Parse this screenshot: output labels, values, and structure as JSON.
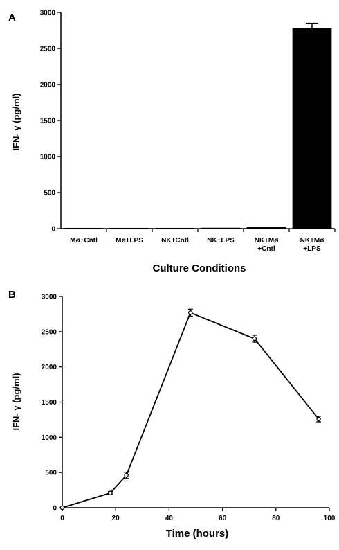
{
  "chart_data": [
    {
      "panel": "A",
      "type": "bar",
      "categories": [
        [
          "Mø+Cntl"
        ],
        [
          "Mø+LPS"
        ],
        [
          "NK+Cntl"
        ],
        [
          "NK+LPS"
        ],
        [
          "NK+Mø",
          "+Cntl"
        ],
        [
          "NK+Mø",
          "+LPS"
        ]
      ],
      "values": [
        10,
        10,
        10,
        12,
        25,
        2780
      ],
      "errors": [
        0,
        0,
        0,
        0,
        0,
        70
      ],
      "xlabel": "Culture Conditions",
      "ylabel": "IFN- γ (pg/ml)",
      "ylim": [
        0,
        3000
      ],
      "yticks": [
        0,
        500,
        1000,
        1500,
        2000,
        2500,
        3000
      ],
      "color": "#000000"
    },
    {
      "panel": "B",
      "type": "line",
      "x": [
        0,
        18,
        24,
        48,
        72,
        96
      ],
      "values": [
        0,
        210,
        460,
        2770,
        2400,
        1260
      ],
      "errors": [
        0,
        20,
        45,
        50,
        50,
        40
      ],
      "xlabel": "Time (hours)",
      "ylabel": "IFN- γ (pg/ml)",
      "xlim": [
        0,
        100
      ],
      "ylim": [
        0,
        3000
      ],
      "xticks": [
        0,
        20,
        40,
        60,
        80,
        100
      ],
      "yticks": [
        0,
        500,
        1000,
        1500,
        2000,
        2500,
        3000
      ],
      "color": "#000000"
    }
  ]
}
